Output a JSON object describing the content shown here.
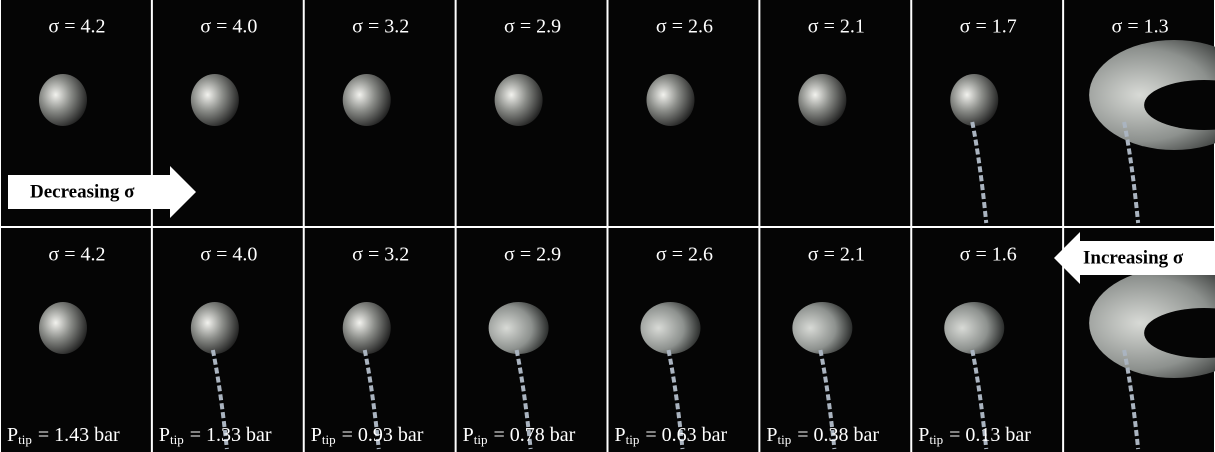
{
  "top_row": {
    "labels": [
      "σ = 4.2",
      "σ = 4.0",
      "σ = 3.2",
      "σ = 2.9",
      "σ = 2.6",
      "σ = 2.1",
      "σ = 1.7",
      "σ = 1.3"
    ]
  },
  "bottom_row": {
    "labels": [
      "σ = 4.2",
      "σ = 4.0",
      "σ = 3.2",
      "σ = 2.9",
      "σ = 2.6",
      "σ = 2.1",
      "σ = 1.6"
    ],
    "pressure_symbol": "P",
    "pressure_subscript": "tip",
    "pressures": [
      "= 1.43 bar",
      "= 1.33 bar",
      "= 0.93 bar",
      "= 0.78 bar",
      "= 0.63 bar",
      "= 0.38 bar",
      "= 0.13 bar"
    ]
  },
  "arrows": {
    "decreasing": "Decreasing σ",
    "increasing": "Increasing σ"
  }
}
